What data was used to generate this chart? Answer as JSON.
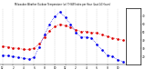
{
  "title": "Milwaukee Weather Outdoor Temperature (vs) THSW Index per Hour (Last 24 Hours)",
  "hours": [
    0,
    1,
    2,
    3,
    4,
    5,
    6,
    7,
    8,
    9,
    10,
    11,
    12,
    13,
    14,
    15,
    16,
    17,
    18,
    19,
    20,
    21,
    22,
    23
  ],
  "temp": [
    33,
    32,
    31,
    30,
    29,
    29,
    30,
    36,
    44,
    52,
    57,
    60,
    58,
    56,
    53,
    51,
    51,
    50,
    49,
    47,
    45,
    43,
    42,
    40
  ],
  "thsw": [
    22,
    21,
    20,
    19,
    18,
    17,
    19,
    32,
    47,
    60,
    70,
    75,
    68,
    60,
    50,
    44,
    44,
    43,
    35,
    28,
    22,
    20,
    16,
    14
  ],
  "temp_color": "#dd0000",
  "thsw_color": "#0000ee",
  "bg_color": "#ffffff",
  "grid_color": "#bbbbbb",
  "ylim_min": 10,
  "ylim_max": 80,
  "ytick_values": [
    20,
    30,
    40,
    50,
    60,
    70
  ],
  "ytick_labels": [
    "20",
    "30",
    "40",
    "50",
    "60",
    "70"
  ],
  "xtick_values": [
    0,
    2,
    4,
    6,
    8,
    10,
    12,
    14,
    16,
    18,
    20,
    22
  ],
  "xtick_labels": [
    "12",
    "2",
    "4",
    "6",
    "8",
    "10",
    "12",
    "2",
    "4",
    "6",
    "8",
    "10"
  ]
}
